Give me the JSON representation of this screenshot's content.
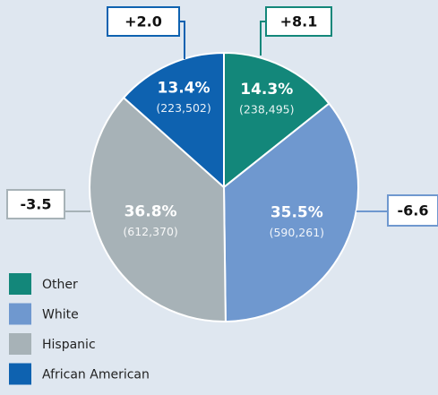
{
  "chart_data": {
    "type": "pie",
    "categories": [
      "Other",
      "White",
      "Hispanic",
      "African American"
    ],
    "values": [
      14.3,
      35.5,
      36.8,
      13.4
    ],
    "value_labels": [
      "14.3%",
      "35.5%",
      "36.8%",
      "13.4%"
    ],
    "counts": [
      238495,
      590261,
      612370,
      223502
    ],
    "count_labels": [
      "(238,495)",
      "(590,261)",
      "(612,370)",
      "(223,502)"
    ],
    "changes": [
      8.1,
      -6.6,
      -3.5,
      2.0
    ],
    "change_labels": [
      "+8.1",
      "-6.6",
      "-3.5",
      "+2.0"
    ],
    "colors": [
      "#13877a",
      "#6f98cf",
      "#a7b2b7",
      "#0e62b0"
    ],
    "legend": "bottom-left"
  }
}
